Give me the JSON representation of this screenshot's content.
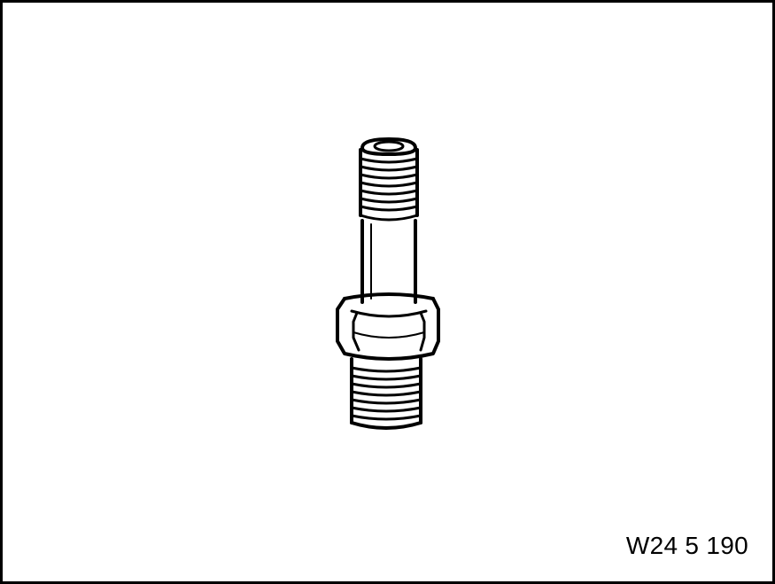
{
  "figure": {
    "code": "W24 5 190",
    "subject_icon": "threaded-stud-fitting-icon",
    "line_color": "#000000",
    "background_color": "#ffffff"
  }
}
